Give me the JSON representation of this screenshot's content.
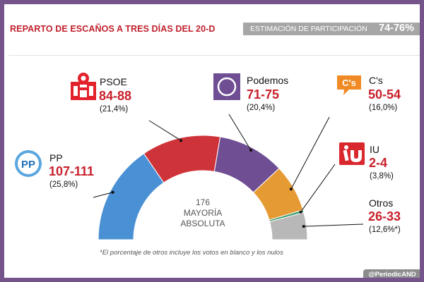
{
  "header": {
    "title": "REPARTO DE ESCAÑOS A TRES DÍAS DEL 20-D",
    "participation_label": "ESTIMACIÓN DE PARTICIPACIÓN",
    "participation_value": "74-76%"
  },
  "chart_data": {
    "type": "pie",
    "shape": "hemicycle",
    "total_seats": 350,
    "majority_number": "176",
    "majority_line1": "MAYORÍA",
    "majority_line2": "ABSOLUTA",
    "footnote": "*El porcentaje de otros incluye los votos en blanco y los nulos",
    "parties": [
      {
        "name": "PP",
        "seats_range": "107-111",
        "pct_label": "(25,8%)",
        "value": 109,
        "color": "#4a90d4",
        "logo": "pp-logo-icon"
      },
      {
        "name": "PSOE",
        "seats_range": "84-88",
        "pct_label": "(21,4%)",
        "value": 86,
        "color": "#cf333a",
        "logo": "psoe-rose-icon"
      },
      {
        "name": "Podemos",
        "seats_range": "71-75",
        "pct_label": "(20,4%)",
        "value": 73,
        "color": "#6f4e93",
        "logo": "podemos-circle-icon"
      },
      {
        "name": "C's",
        "seats_range": "50-54",
        "pct_label": "(16,0%)",
        "value": 52,
        "color": "#e69a34",
        "logo": "ciudadanos-logo-icon"
      },
      {
        "name": "IU",
        "seats_range": "2-4",
        "pct_label": "(3,8%)",
        "value": 3,
        "color": "#3c9e6e",
        "logo": "iu-logo-icon"
      },
      {
        "name": "Otros",
        "seats_range": "26-33",
        "pct_label": "(12,6%*)",
        "value": 29.5,
        "color": "#b8b8b8",
        "logo": ""
      }
    ]
  },
  "footer": {
    "handle": "@PeriodicAND"
  },
  "colors": {
    "frame": "#75548c",
    "accent": "#c8202b",
    "participation_bg": "#a6a6a6"
  }
}
